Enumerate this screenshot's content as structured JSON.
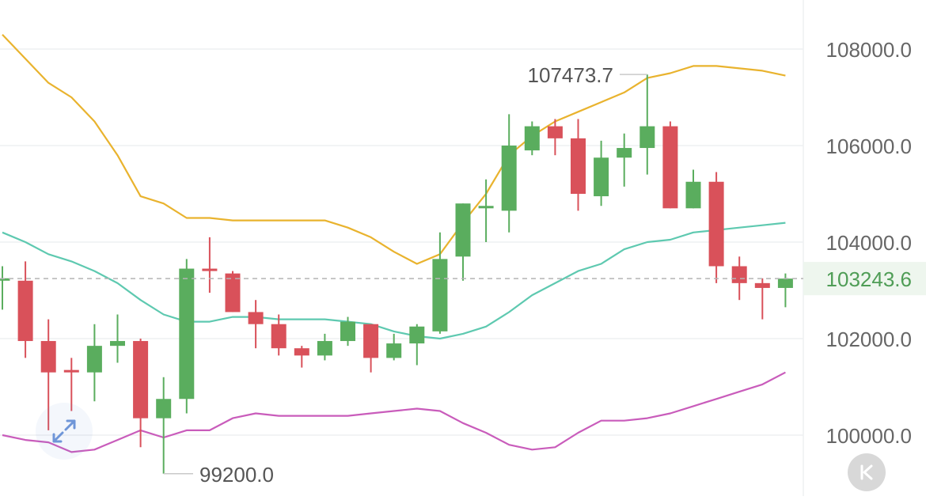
{
  "chart_data": {
    "type": "candlestick",
    "y_axis": {
      "ticks": [
        "100000.0",
        "102000.0",
        "104000.0",
        "106000.0",
        "108000.0"
      ],
      "tick_values": [
        100000,
        102000,
        104000,
        106000,
        108000
      ],
      "position": "right"
    },
    "current_price": {
      "value": 103243.6,
      "label": "103243.6"
    },
    "annotations": {
      "high": {
        "value": 107473.7,
        "label": "107473.7",
        "candle_index": 28
      },
      "low": {
        "value": 99200.0,
        "label": "99200.0",
        "candle_index": 7
      }
    },
    "candles": [
      {
        "o": 103200,
        "h": 103500,
        "l": 102600,
        "c": 103250
      },
      {
        "o": 103200,
        "h": 103600,
        "l": 101600,
        "c": 101950
      },
      {
        "o": 101950,
        "h": 102400,
        "l": 100100,
        "c": 101300
      },
      {
        "o": 101350,
        "h": 101600,
        "l": 100500,
        "c": 101300
      },
      {
        "o": 101300,
        "h": 102300,
        "l": 100700,
        "c": 101850
      },
      {
        "o": 101850,
        "h": 102500,
        "l": 101500,
        "c": 101950
      },
      {
        "o": 101950,
        "h": 102000,
        "l": 99750,
        "c": 100350
      },
      {
        "o": 100350,
        "h": 101200,
        "l": 99200,
        "c": 100750
      },
      {
        "o": 100750,
        "h": 103650,
        "l": 100450,
        "c": 103450
      },
      {
        "o": 103450,
        "h": 104100,
        "l": 102950,
        "c": 103400
      },
      {
        "o": 103350,
        "h": 103400,
        "l": 102550,
        "c": 102550
      },
      {
        "o": 102550,
        "h": 102800,
        "l": 101800,
        "c": 102300
      },
      {
        "o": 102300,
        "h": 102500,
        "l": 101650,
        "c": 101800
      },
      {
        "o": 101800,
        "h": 101850,
        "l": 101400,
        "c": 101650
      },
      {
        "o": 101650,
        "h": 102100,
        "l": 101550,
        "c": 101950
      },
      {
        "o": 101950,
        "h": 102450,
        "l": 101850,
        "c": 102350
      },
      {
        "o": 102300,
        "h": 102300,
        "l": 101300,
        "c": 101600
      },
      {
        "o": 101600,
        "h": 102100,
        "l": 101550,
        "c": 101900
      },
      {
        "o": 101900,
        "h": 102300,
        "l": 101450,
        "c": 102250
      },
      {
        "o": 102150,
        "h": 104200,
        "l": 102100,
        "c": 103650
      },
      {
        "o": 103700,
        "h": 104800,
        "l": 103200,
        "c": 104800
      },
      {
        "o": 104700,
        "h": 105300,
        "l": 104000,
        "c": 104750
      },
      {
        "o": 104650,
        "h": 106650,
        "l": 104200,
        "c": 106000
      },
      {
        "o": 105900,
        "h": 106500,
        "l": 105800,
        "c": 106400
      },
      {
        "o": 106400,
        "h": 106550,
        "l": 105800,
        "c": 106150
      },
      {
        "o": 106150,
        "h": 106550,
        "l": 104650,
        "c": 105000
      },
      {
        "o": 104950,
        "h": 106100,
        "l": 104750,
        "c": 105750
      },
      {
        "o": 105750,
        "h": 106250,
        "l": 105150,
        "c": 105950
      },
      {
        "o": 105950,
        "h": 107473.7,
        "l": 105400,
        "c": 106400
      },
      {
        "o": 106400,
        "h": 106500,
        "l": 104700,
        "c": 104700
      },
      {
        "o": 104700,
        "h": 105500,
        "l": 104700,
        "c": 105250
      },
      {
        "o": 105250,
        "h": 105450,
        "l": 103150,
        "c": 103500
      },
      {
        "o": 103500,
        "h": 103700,
        "l": 102800,
        "c": 103150
      },
      {
        "o": 103150,
        "h": 103250,
        "l": 102400,
        "c": 103050
      },
      {
        "o": 103050,
        "h": 103350,
        "l": 102650,
        "c": 103243.6
      }
    ],
    "bands": {
      "upper": [
        108300,
        107800,
        107300,
        107000,
        106500,
        105800,
        104950,
        104800,
        104500,
        104500,
        104450,
        104450,
        104450,
        104450,
        104450,
        104300,
        104100,
        103800,
        103550,
        103750,
        104400,
        105000,
        105800,
        106200,
        106500,
        106700,
        106900,
        107100,
        107400,
        107500,
        107650,
        107650,
        107600,
        107550,
        107450
      ],
      "middle": [
        104200,
        104000,
        103750,
        103600,
        103400,
        103150,
        102800,
        102500,
        102350,
        102350,
        102450,
        102450,
        102400,
        102400,
        102400,
        102350,
        102300,
        102150,
        102050,
        102000,
        102100,
        102250,
        102550,
        102900,
        103150,
        103400,
        103550,
        103850,
        104000,
        104050,
        104200,
        104250,
        104300,
        104350,
        104400
      ],
      "lower": [
        100000,
        99900,
        99850,
        99650,
        99700,
        99900,
        100100,
        99950,
        100100,
        100100,
        100350,
        100450,
        100400,
        100400,
        100400,
        100400,
        100450,
        100500,
        100550,
        100500,
        100250,
        100050,
        99800,
        99700,
        99750,
        100050,
        100300,
        100300,
        100350,
        100450,
        100600,
        100750,
        100900,
        101050,
        101300
      ]
    },
    "colors": {
      "up": "#5aad5e",
      "down": "#d9515a",
      "upper_band": "#e9b32e",
      "middle_band": "#5ec9b0",
      "lower_band": "#c95cbb",
      "grid": "#eef0f2",
      "axis_text": "#666666",
      "current_price_text": "#4f9d56",
      "current_price_bg": "#eef6ee",
      "dashed_line": "#b5b5b5"
    },
    "grid": true
  },
  "controls": {
    "expand_icon": "expand-arrows-icon",
    "kline_icon": "k-icon"
  }
}
